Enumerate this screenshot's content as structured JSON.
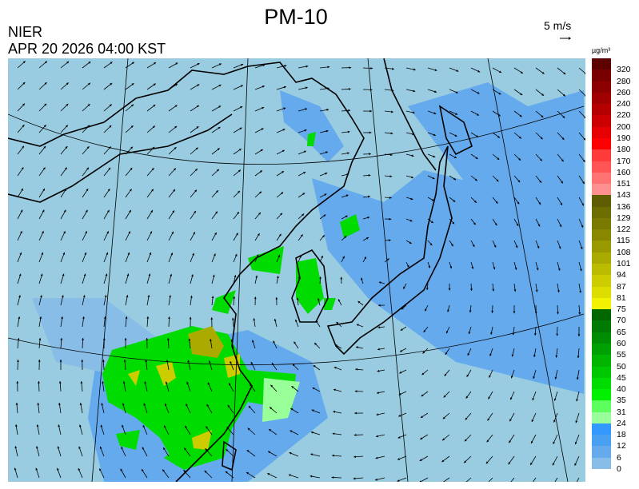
{
  "header": {
    "title": "PM-10",
    "organization": "NIER",
    "datetime": "APR 20 2026 04:00 KST",
    "reference_vector_label": "5 m/s",
    "unit_label": "µg/m³"
  },
  "legend": {
    "labels": [
      "320",
      "280",
      "260",
      "240",
      "220",
      "200",
      "190",
      "180",
      "170",
      "160",
      "151",
      "143",
      "136",
      "129",
      "122",
      "115",
      "108",
      "101",
      "94",
      "87",
      "81",
      "75",
      "70",
      "65",
      "60",
      "55",
      "50",
      "45",
      "40",
      "35",
      "31",
      "24",
      "18",
      "12",
      "6",
      "0"
    ],
    "colors": [
      "#5c0000",
      "#780000",
      "#8c0000",
      "#a00000",
      "#b40000",
      "#cc0000",
      "#e60000",
      "#ff0000",
      "#ff3a3a",
      "#ff5555",
      "#ff7373",
      "#ff9090",
      "#5e5e00",
      "#6e6e00",
      "#7a7a00",
      "#888800",
      "#999900",
      "#aaaa00",
      "#bbbb00",
      "#cccc00",
      "#dddd00",
      "#f2f200",
      "#006600",
      "#007a00",
      "#008c00",
      "#00a000",
      "#00b400",
      "#00c800",
      "#00dc00",
      "#00f000",
      "#5cff5c",
      "#99ff99",
      "#3399ff",
      "#4aa0f0",
      "#66aaee",
      "#88bde8"
    ],
    "bottom_color": "#99cce0"
  },
  "map": {
    "background_color": "#99cce0",
    "coast_color": "#000000"
  }
}
